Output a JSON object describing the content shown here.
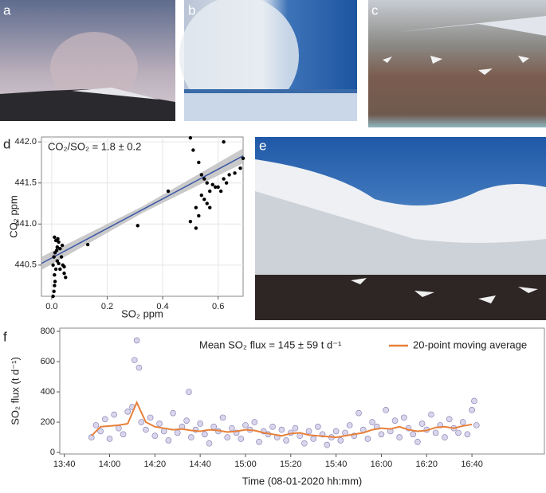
{
  "panel_labels": [
    "a",
    "b",
    "c",
    "d",
    "e",
    "f"
  ],
  "chart_data": [
    {
      "type": "scatter",
      "annotation": "CO₂/SO₂ = 1.8 ± 0.2",
      "xlabel": "SO₂ ppm",
      "ylabel": "CO₂ ppm",
      "x": [
        0.005,
        0.008,
        0.01,
        0.012,
        0.01,
        0.015,
        0.005,
        0.02,
        0.008,
        0.012,
        0.018,
        0.02,
        0.015,
        0.022,
        0.01,
        0.025,
        0.03,
        0.035,
        0.04,
        0.045,
        0.05,
        0.03,
        0.038,
        0.025,
        0.045,
        0.13,
        0.31,
        0.42,
        0.5,
        0.52,
        0.5,
        0.51,
        0.53,
        0.54,
        0.55,
        0.56,
        0.52,
        0.53,
        0.54,
        0.55,
        0.56,
        0.57,
        0.58,
        0.6,
        0.61,
        0.62,
        0.63,
        0.64,
        0.62,
        0.66,
        0.68,
        0.69,
        0.57,
        0.59
      ],
      "values": [
        440.12,
        440.18,
        440.25,
        440.3,
        440.38,
        440.45,
        440.5,
        440.55,
        440.6,
        440.65,
        440.68,
        440.72,
        440.8,
        440.82,
        440.84,
        440.78,
        440.7,
        440.6,
        440.5,
        440.4,
        440.35,
        440.45,
        440.74,
        440.52,
        440.48,
        440.75,
        440.98,
        441.4,
        441.03,
        440.95,
        442.05,
        441.9,
        441.75,
        441.6,
        441.55,
        441.5,
        441.2,
        441.1,
        441.35,
        441.3,
        441.25,
        441.4,
        441.48,
        441.45,
        441.4,
        441.55,
        441.5,
        441.6,
        442.0,
        441.62,
        441.68,
        441.8,
        441.2,
        441.45
      ],
      "color": "#000000",
      "fit": {
        "x": [
          -0.037,
          0.33,
          0.69
        ],
        "values": [
          440.52,
          441.18,
          441.83
        ],
        "lower": [
          440.44,
          441.14,
          441.74
        ],
        "upper": [
          440.6,
          441.22,
          441.92
        ],
        "color": "#3b57a6",
        "band_color": "#bdbdbd"
      },
      "xlim": [
        -0.037,
        0.69
      ],
      "ylim": [
        440.12,
        442.06
      ],
      "xticks": [
        {
          "value": 0,
          "label": "0.0"
        },
        0.2,
        0.4,
        0.6
      ],
      "yticks": [
        440.5,
        {
          "value": 441,
          "label": "441.0"
        },
        441.5,
        {
          "value": 442,
          "label": "442.0"
        }
      ],
      "grid": true
    },
    {
      "type": "scatter",
      "annotation": "Mean SO₂ flux = 145 ± 59 t d⁻¹",
      "xlabel": "Time (08-01-2020 hh:mm)",
      "ylabel": "SO₂ flux (t d⁻¹)",
      "x": [
        832,
        834,
        836,
        838,
        840,
        842,
        844,
        846,
        848,
        850,
        852,
        854,
        856,
        858,
        860,
        862,
        864,
        866,
        868,
        870,
        872,
        874,
        876,
        878,
        880,
        882,
        884,
        886,
        888,
        890,
        892,
        894,
        896,
        898,
        900,
        902,
        904,
        906,
        908,
        910,
        912,
        914,
        916,
        918,
        920,
        922,
        924,
        926,
        928,
        930,
        932,
        934,
        936,
        938,
        940,
        942,
        944,
        946,
        948,
        950,
        952,
        954,
        956,
        958,
        960,
        962,
        964,
        966,
        968,
        970,
        972,
        974,
        976,
        978,
        980,
        982,
        984,
        986,
        988,
        990,
        992,
        994,
        996,
        998,
        1000,
        1002,
        851,
        853,
        875,
        1001
      ],
      "values": [
        100,
        180,
        140,
        220,
        90,
        250,
        160,
        120,
        270,
        300,
        740,
        200,
        150,
        230,
        110,
        190,
        140,
        80,
        260,
        130,
        170,
        210,
        100,
        150,
        190,
        120,
        60,
        170,
        140,
        230,
        100,
        160,
        130,
        90,
        180,
        150,
        200,
        70,
        140,
        120,
        170,
        100,
        150,
        80,
        130,
        160,
        110,
        60,
        140,
        90,
        170,
        120,
        50,
        100,
        140,
        80,
        130,
        180,
        110,
        260,
        150,
        90,
        200,
        170,
        120,
        280,
        140,
        210,
        100,
        230,
        160,
        120,
        70,
        190,
        150,
        250,
        130,
        180,
        100,
        220,
        160,
        130,
        200,
        120,
        280,
        180,
        610,
        560,
        400,
        340
      ],
      "color": "#c9c4e2",
      "series": [
        {
          "name": "20-point moving average",
          "color": "#e8803a",
          "x": [
            832,
            836,
            840,
            844,
            848,
            852,
            856,
            860,
            864,
            868,
            872,
            876,
            880,
            884,
            888,
            892,
            896,
            900,
            904,
            908,
            912,
            916,
            920,
            924,
            928,
            932,
            936,
            940,
            944,
            948,
            952,
            956,
            960,
            964,
            968,
            972,
            976,
            980,
            984,
            988,
            992,
            996,
            1000
          ],
          "values": [
            110,
            170,
            175,
            180,
            190,
            330,
            200,
            170,
            160,
            150,
            155,
            145,
            140,
            150,
            145,
            135,
            140,
            150,
            145,
            130,
            120,
            110,
            125,
            130,
            115,
            110,
            105,
            100,
            110,
            120,
            130,
            150,
            160,
            155,
            170,
            150,
            140,
            145,
            165,
            170,
            160,
            175,
            185
          ]
        }
      ],
      "xlim": [
        818,
        1032
      ],
      "ylim": [
        -10,
        821
      ],
      "xticks": [
        {
          "value": 820,
          "label": "13:40"
        },
        {
          "value": 840,
          "label": "14:00"
        },
        {
          "value": 860,
          "label": "14:20"
        },
        {
          "value": 880,
          "label": "14:40"
        },
        {
          "value": 900,
          "label": "15:00"
        },
        {
          "value": 920,
          "label": "15:20"
        },
        {
          "value": 940,
          "label": "15:40"
        },
        {
          "value": 960,
          "label": "16:00"
        },
        {
          "value": 980,
          "label": "16:20"
        },
        {
          "value": 1000,
          "label": "16:40"
        }
      ],
      "yticks": [
        0,
        200,
        400,
        600,
        800
      ],
      "grid": false
    }
  ]
}
